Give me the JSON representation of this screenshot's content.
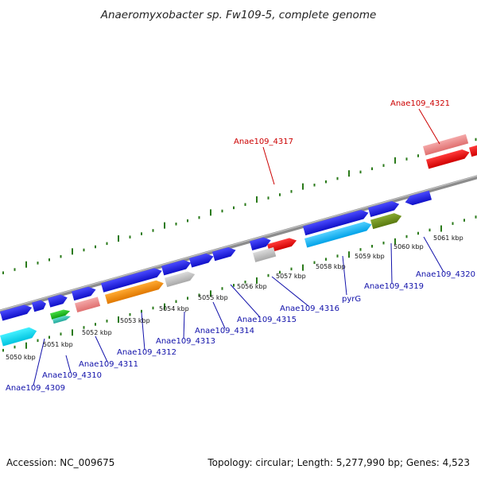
{
  "title": "Anaeromyxobacter sp. Fw109-5, complete genome",
  "footer": {
    "accession": "Accession: NC_009675",
    "summary": "Topology: circular; Length: 5,277,990 bp; Genes: 4,523"
  },
  "colors": {
    "backbone": "#8c8c8c",
    "ticks": "#2a7a1a",
    "label_blue": "#1111aa",
    "label_red": "#cc0000"
  },
  "ruler_labels": [
    "5050 kbp",
    "5051 kbp",
    "5052 kbp",
    "5053 kbp",
    "5054 kbp",
    "5055 kbp",
    "5056 kbp",
    "5057 kbp",
    "5058 kbp",
    "5059 kbp",
    "5060 kbp",
    "5061 kbp"
  ],
  "gene_labels": [
    {
      "text": "Anae109_4309",
      "color": "blue"
    },
    {
      "text": "Anae109_4310",
      "color": "blue"
    },
    {
      "text": "Anae109_4311",
      "color": "blue"
    },
    {
      "text": "Anae109_4312",
      "color": "blue"
    },
    {
      "text": "Anae109_4313",
      "color": "blue"
    },
    {
      "text": "Anae109_4314",
      "color": "blue"
    },
    {
      "text": "Anae109_4315",
      "color": "blue"
    },
    {
      "text": "Anae109_4316",
      "color": "blue"
    },
    {
      "text": "pyrG",
      "color": "blue"
    },
    {
      "text": "Anae109_4319",
      "color": "blue"
    },
    {
      "text": "Anae109_4320",
      "color": "blue"
    },
    {
      "text": "Anae109_4317",
      "color": "red"
    },
    {
      "text": "Anae109_4321",
      "color": "red"
    }
  ]
}
